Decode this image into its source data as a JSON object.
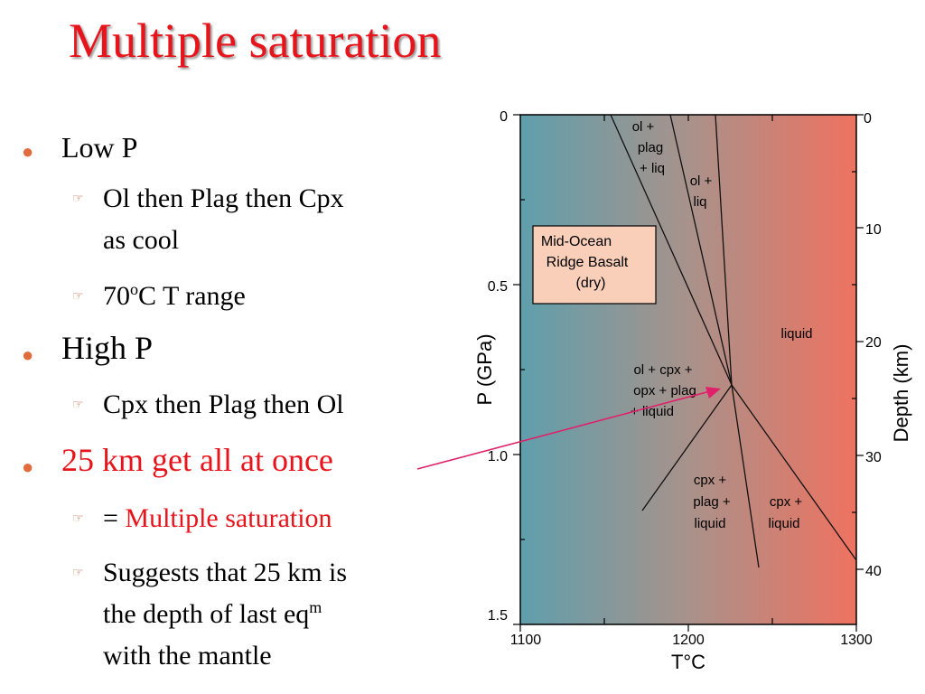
{
  "title": "Multiple saturation",
  "bullets": {
    "low_p": "Low P",
    "low_p_sub1_line1": "Ol then Plag then Cpx",
    "low_p_sub1_line2": "as cool",
    "low_p_sub2_pre": "70",
    "low_p_sub2_sup": "o",
    "low_p_sub2_post": "C T range",
    "high_p": "High P",
    "high_p_sub1": "Cpx then Plag then Ol",
    "km25": "25 km get all at once",
    "km25_sub1_eq": "= ",
    "km25_sub1_red": "Multiple saturation",
    "km25_sub2_line1": "Suggests that 25 km is",
    "km25_sub2_line2_pre": "the depth of last eq",
    "km25_sub2_line2_sup": "m",
    "km25_sub2_line3": "with the mantle"
  },
  "diagram": {
    "left_axis_label": "P (GPa)",
    "right_axis_label": "Depth (km)",
    "bottom_axis_label": "T°C",
    "left_ticks": [
      "0",
      "0.5",
      "1.0",
      "1.5"
    ],
    "right_ticks": [
      "0",
      "10",
      "20",
      "30",
      "40"
    ],
    "bottom_ticks": [
      "1100",
      "1200",
      "1300"
    ],
    "box_line1": "Mid-Ocean",
    "box_line2": "Ridge Basalt",
    "box_line3": "(dry)",
    "field_ol_plag_liq": [
      "ol +",
      "plag",
      "+ liq"
    ],
    "field_ol_liq": [
      "ol +",
      "liq"
    ],
    "field_liquid": "liquid",
    "field_ol_cpx_opx": [
      "ol + cpx +",
      "opx + plag",
      "+ liquid"
    ],
    "field_cpx_plag_liq": [
      "cpx +",
      "plag +",
      "liquid"
    ],
    "field_cpx_liq": [
      "cpx +",
      "liquid"
    ],
    "colors": {
      "cool": "#5f9fac",
      "mid": "#a8928b",
      "hot": "#ef7260",
      "arrow": "#e0206a",
      "box": "#f9cfba"
    }
  }
}
